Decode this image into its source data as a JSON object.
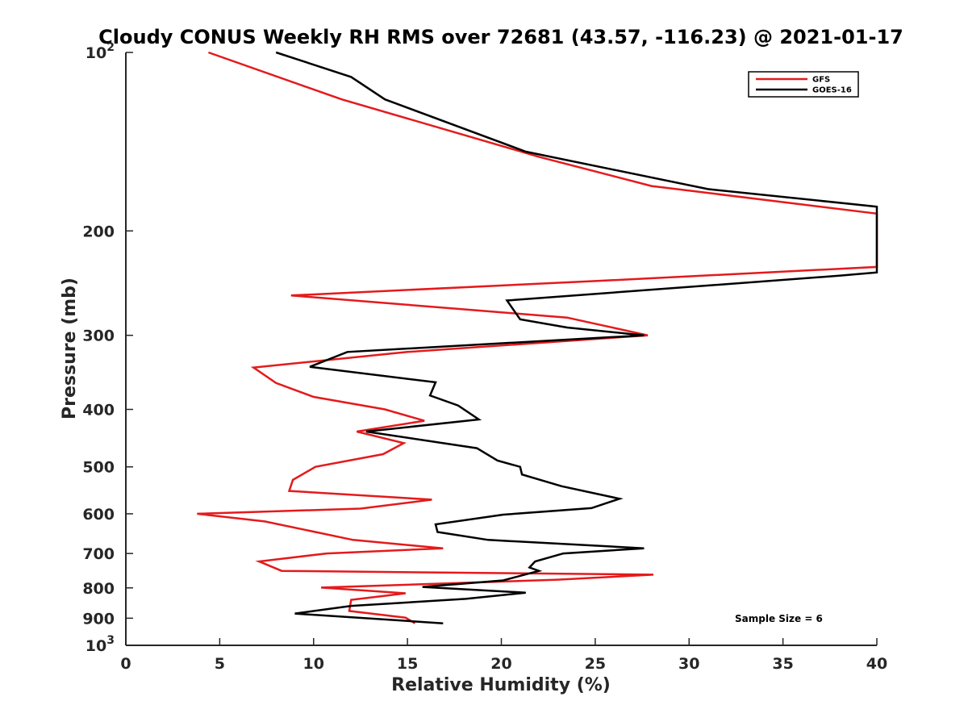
{
  "chart_data": {
    "type": "line",
    "title": "Cloudy CONUS Weekly RH RMS over 72681 (43.57, -116.23) @ 2021-01-17",
    "xlabel": "Relative Humidity (%)",
    "ylabel": "Pressure (mb)",
    "xlim": [
      0,
      40
    ],
    "ylim": [
      100,
      1000
    ],
    "y_scale": "log",
    "y_reversed": true,
    "x_ticks": [
      "0",
      "5",
      "10",
      "15",
      "20",
      "25",
      "30",
      "35",
      "40"
    ],
    "y_ticks": [
      {
        "value": 100,
        "base": "10",
        "exp": "2"
      },
      {
        "value": 200,
        "label": "200"
      },
      {
        "value": 300,
        "label": "300"
      },
      {
        "value": 400,
        "label": "400"
      },
      {
        "value": 500,
        "label": "500"
      },
      {
        "value": 600,
        "label": "600"
      },
      {
        "value": 700,
        "label": "700"
      },
      {
        "value": 800,
        "label": "800"
      },
      {
        "value": 900,
        "label": "900"
      },
      {
        "value": 1000,
        "base": "10",
        "exp": "3"
      }
    ],
    "grid": false,
    "legend_position": "top-right",
    "annotation": "Sample Size = 6",
    "series": [
      {
        "name": "GFS",
        "color": "#e41a1c",
        "points": [
          [
            4.4,
            100
          ],
          [
            11.5,
            120
          ],
          [
            22,
            150
          ],
          [
            28,
            168
          ],
          [
            40,
            187
          ],
          [
            40,
            230
          ],
          [
            25,
            243
          ],
          [
            8.8,
            257
          ],
          [
            23.5,
            280
          ],
          [
            27.8,
            300
          ],
          [
            15,
            320
          ],
          [
            6.8,
            340
          ],
          [
            8,
            361
          ],
          [
            10,
            381
          ],
          [
            13.8,
            400
          ],
          [
            15.9,
            418
          ],
          [
            12.3,
            436
          ],
          [
            14.8,
            456
          ],
          [
            13.7,
            476
          ],
          [
            10.1,
            500
          ],
          [
            8.9,
            526
          ],
          [
            8.7,
            549
          ],
          [
            16.3,
            568
          ],
          [
            12.5,
            588
          ],
          [
            3.8,
            600
          ],
          [
            7.4,
            618
          ],
          [
            10.2,
            645
          ],
          [
            12.1,
            664
          ],
          [
            16.9,
            686
          ],
          [
            10.7,
            700
          ],
          [
            7.1,
            722
          ],
          [
            8.3,
            749
          ],
          [
            28.1,
            760
          ],
          [
            23,
            775
          ],
          [
            10.4,
            799
          ],
          [
            14.9,
            817
          ],
          [
            12,
            838
          ],
          [
            11.9,
            875
          ],
          [
            14.9,
            898
          ],
          [
            15.4,
            918
          ]
        ]
      },
      {
        "name": "GOES-16",
        "color": "#000000",
        "points": [
          [
            8,
            100
          ],
          [
            12,
            110
          ],
          [
            13.8,
            120
          ],
          [
            21.3,
            147
          ],
          [
            31,
            170
          ],
          [
            40,
            182
          ],
          [
            40,
            235
          ],
          [
            38,
            238
          ],
          [
            20.3,
            262
          ],
          [
            21,
            282
          ],
          [
            23.5,
            291
          ],
          [
            27.6,
            300
          ],
          [
            11.8,
            320
          ],
          [
            9.8,
            339
          ],
          [
            16.5,
            360
          ],
          [
            16.2,
            379
          ],
          [
            17.7,
            394
          ],
          [
            18.8,
            416
          ],
          [
            12.8,
            436
          ],
          [
            18.7,
            465
          ],
          [
            19.8,
            488
          ],
          [
            21,
            500
          ],
          [
            21.1,
            515
          ],
          [
            23.2,
            539
          ],
          [
            26.3,
            566
          ],
          [
            24.8,
            587
          ],
          [
            20.1,
            602
          ],
          [
            16.5,
            625
          ],
          [
            16.6,
            644
          ],
          [
            19.3,
            664
          ],
          [
            27.6,
            686
          ],
          [
            23.3,
            700
          ],
          [
            21.8,
            722
          ],
          [
            21.5,
            739
          ],
          [
            22,
            749
          ],
          [
            20.1,
            777
          ],
          [
            15.8,
            797
          ],
          [
            21.3,
            815
          ],
          [
            18.1,
            835
          ],
          [
            12,
            858
          ],
          [
            9,
            884
          ],
          [
            16.9,
            918
          ]
        ]
      }
    ]
  }
}
